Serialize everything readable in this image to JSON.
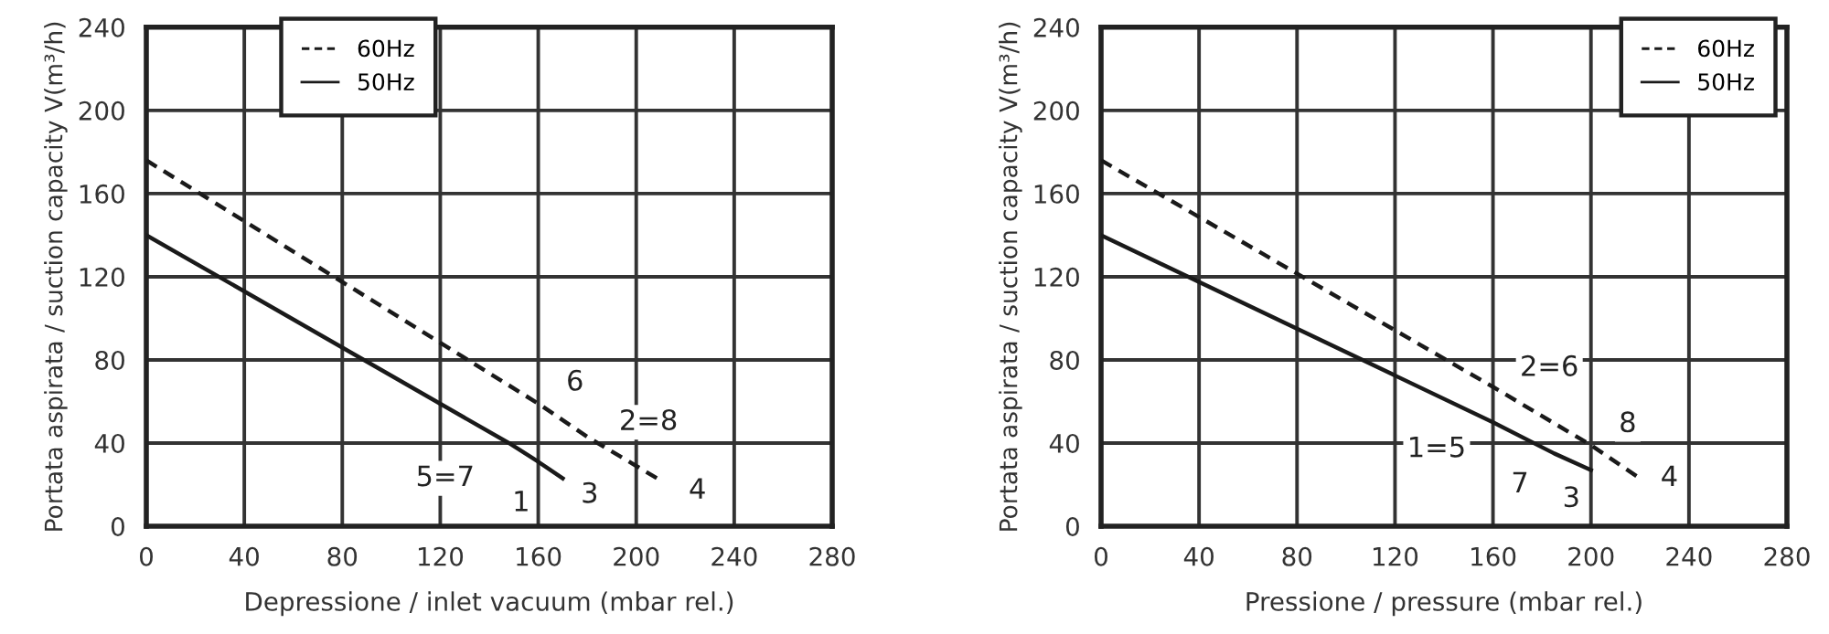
{
  "chart_data": [
    {
      "type": "line",
      "xlabel": "Depressione / inlet vacuum (mbar rel.)",
      "ylabel": "Portata aspirata / suction capacity V(m³/h)",
      "xlim": [
        0,
        280
      ],
      "xticks": [
        0,
        40,
        80,
        120,
        160,
        200,
        240,
        280
      ],
      "ylim": [
        0,
        240
      ],
      "yticks": [
        0,
        40,
        80,
        120,
        160,
        200,
        240
      ],
      "grid": true,
      "legend": "top left",
      "series": [
        {
          "name": "60Hz",
          "color": "#1a1a1a",
          "line_style": "dashed",
          "x": [
            0,
            160,
            180,
            210
          ],
          "values": [
            176,
            59,
            43,
            22
          ]
        },
        {
          "name": "50Hz",
          "color": "#1a1a1a",
          "line_style": "solid",
          "x": [
            0,
            148,
            160,
            170
          ],
          "values": [
            140,
            40,
            31,
            23
          ]
        }
      ],
      "annotations": [
        {
          "text": "6",
          "x": 175,
          "y": 69
        },
        {
          "text": "2=8",
          "x": 205,
          "y": 50
        },
        {
          "text": "5=7",
          "x": 122,
          "y": 23
        },
        {
          "text": "1",
          "x": 153,
          "y": 11
        },
        {
          "text": "3",
          "x": 181,
          "y": 15
        },
        {
          "text": "4",
          "x": 225,
          "y": 17
        }
      ]
    },
    {
      "type": "line",
      "xlabel": "Pressione / pressure (mbar rel.)",
      "ylabel": "Portata aspirata / suction capacity V(m³/h)",
      "xlim": [
        0,
        280
      ],
      "xticks": [
        0,
        40,
        80,
        120,
        160,
        200,
        240,
        280
      ],
      "ylim": [
        0,
        240
      ],
      "yticks": [
        0,
        40,
        80,
        120,
        160,
        200,
        240
      ],
      "grid": true,
      "legend": "top right",
      "series": [
        {
          "name": "60Hz",
          "color": "#1a1a1a",
          "line_style": "dashed",
          "x": [
            0,
            160,
            200,
            220
          ],
          "values": [
            176,
            67,
            39,
            23
          ]
        },
        {
          "name": "50Hz",
          "color": "#1a1a1a",
          "line_style": "solid",
          "x": [
            0,
            160,
            185,
            200
          ],
          "values": [
            140,
            50,
            35,
            27
          ]
        }
      ],
      "annotations": [
        {
          "text": "2=6",
          "x": 183,
          "y": 76
        },
        {
          "text": "8",
          "x": 215,
          "y": 49
        },
        {
          "text": "1=5",
          "x": 137,
          "y": 37
        },
        {
          "text": "7",
          "x": 171,
          "y": 20
        },
        {
          "text": "3",
          "x": 192,
          "y": 13
        },
        {
          "text": "4",
          "x": 232,
          "y": 23
        }
      ]
    }
  ]
}
